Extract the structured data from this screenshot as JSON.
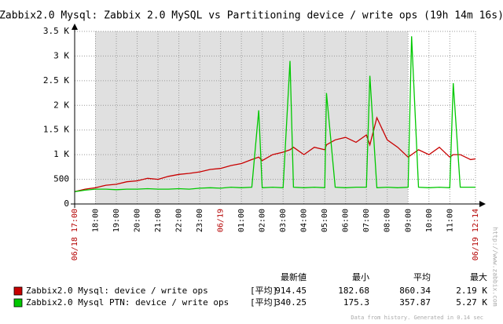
{
  "chart_data": {
    "type": "line",
    "title": "Zabbix2.0 Mysql: Zabbix 2.0 MySQL vs Partitioning device / write ops (19h 14m 16s)",
    "x": [
      "06/18 17:00",
      "06/18 17:30",
      "06/18 18:00",
      "06/18 18:30",
      "06/18 19:00",
      "06/18 19:30",
      "06/18 20:00",
      "06/18 20:30",
      "06/18 21:00",
      "06/18 21:30",
      "06/18 22:00",
      "06/18 22:30",
      "06/18 23:00",
      "06/18 23:30",
      "06/19 00:00",
      "06/19 00:30",
      "06/19 01:00",
      "06/19 01:30",
      "06/19 01:50",
      "06/19 02:00",
      "06/19 02:30",
      "06/19 03:00",
      "06/19 03:20",
      "06/19 03:30",
      "06/19 04:00",
      "06/19 04:30",
      "06/19 05:00",
      "06/19 05:05",
      "06/19 05:30",
      "06/19 06:00",
      "06/19 06:30",
      "06/19 07:00",
      "06/19 07:10",
      "06/19 07:30",
      "06/19 08:00",
      "06/19 08:30",
      "06/19 09:00",
      "06/19 09:10",
      "06/19 09:30",
      "06/19 10:00",
      "06/19 10:30",
      "06/19 11:00",
      "06/19 11:10",
      "06/19 11:30",
      "06/19 12:00",
      "06/19 12:14"
    ],
    "series": [
      {
        "name": "Zabbix2.0 Mysql: device / write ops",
        "color": "#c80000",
        "stats": [
          "[平均]",
          "914.45",
          "182.68",
          "860.34",
          "2.19 K"
        ],
        "values": [
          250,
          300,
          330,
          380,
          400,
          450,
          470,
          520,
          500,
          560,
          600,
          620,
          650,
          700,
          720,
          780,
          820,
          900,
          950,
          880,
          1000,
          1050,
          1100,
          1150,
          1000,
          1150,
          1100,
          1200,
          1300,
          1350,
          1250,
          1400,
          1200,
          1750,
          1300,
          1150,
          950,
          1000,
          1100,
          1000,
          1150,
          950,
          1000,
          1000,
          900,
          914
        ]
      },
      {
        "name": "Zabbix2.0 Mysql PTN: device / write ops",
        "color": "#00c800",
        "stats": [
          "[平均]",
          "340.25",
          "175.3",
          "357.87",
          "5.27 K"
        ],
        "values": [
          250,
          280,
          300,
          300,
          290,
          300,
          300,
          310,
          300,
          300,
          310,
          300,
          320,
          330,
          320,
          340,
          330,
          340,
          1900,
          330,
          340,
          330,
          2900,
          340,
          330,
          340,
          330,
          2250,
          340,
          330,
          340,
          340,
          2600,
          330,
          340,
          330,
          340,
          3400,
          340,
          330,
          340,
          330,
          2450,
          340,
          340,
          340
        ]
      }
    ],
    "stats_headers": [
      "最新値",
      "最小",
      "平均",
      "最大"
    ],
    "xlim": [
      "06/18 17:00",
      "06/19 12:14"
    ],
    "xticks": [
      {
        "value": "06/18 17:00",
        "label": "06/18 17:00"
      },
      {
        "value": "06/18 18:00",
        "label": "18:00"
      },
      {
        "value": "06/18 19:00",
        "label": "19:00"
      },
      {
        "value": "06/18 20:00",
        "label": "20:00"
      },
      {
        "value": "06/18 21:00",
        "label": "21:00"
      },
      {
        "value": "06/18 22:00",
        "label": "22:00"
      },
      {
        "value": "06/18 23:00",
        "label": "23:00"
      },
      {
        "value": "06/19 00:00",
        "label": "06/19"
      },
      {
        "value": "06/19 01:00",
        "label": "01:00"
      },
      {
        "value": "06/19 02:00",
        "label": "02:00"
      },
      {
        "value": "06/19 03:00",
        "label": "03:00"
      },
      {
        "value": "06/19 04:00",
        "label": "04:00"
      },
      {
        "value": "06/19 05:00",
        "label": "05:00"
      },
      {
        "value": "06/19 06:00",
        "label": "06:00"
      },
      {
        "value": "06/19 07:00",
        "label": "07:00"
      },
      {
        "value": "06/19 08:00",
        "label": "08:00"
      },
      {
        "value": "06/19 09:00",
        "label": "09:00"
      },
      {
        "value": "06/19 10:00",
        "label": "10:00"
      },
      {
        "value": "06/19 11:00",
        "label": "11:00"
      },
      {
        "value": "06/19 12:14",
        "label": "06/19 12:14"
      }
    ],
    "ylim": [
      0,
      3500
    ],
    "yticks": [
      0,
      500,
      {
        "value": 1000,
        "label": "1 K"
      },
      {
        "value": 1500,
        "label": "1.5 K"
      },
      {
        "value": 2000,
        "label": "2 K"
      },
      {
        "value": 2500,
        "label": "2.5 K"
      },
      {
        "value": 3000,
        "label": "3 K"
      },
      {
        "value": 3500,
        "label": "3.5 K"
      }
    ],
    "grid": true,
    "footer": "Data from history. Generated in 0.14 sec",
    "watermark": "http://www.zabbix.com"
  }
}
